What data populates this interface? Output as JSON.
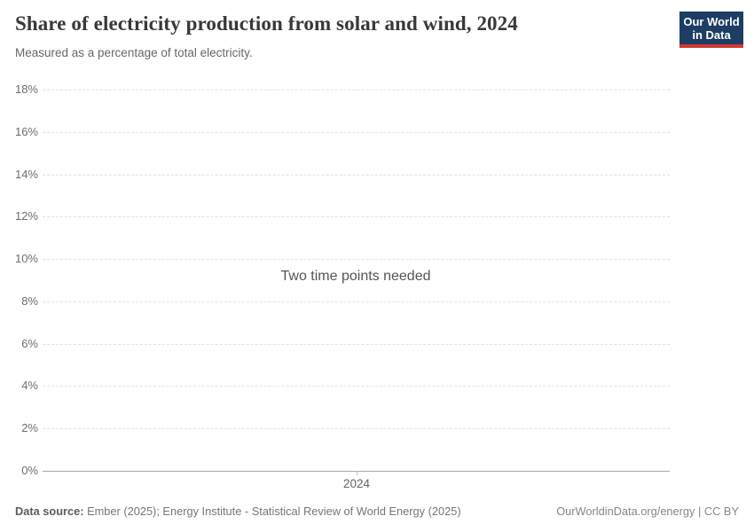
{
  "header": {
    "title": "Share of electricity production from solar and wind, 2024",
    "subtitle": "Measured as a percentage of total electricity.",
    "logo": {
      "line1": "Our World",
      "line2": "in Data",
      "background_color": "#1d3d63",
      "stripe_color": "#d13a34"
    }
  },
  "chart_data": {
    "type": "line",
    "title": "Share of electricity production from solar and wind, 2024",
    "subtitle": "Measured as a percentage of total electricity.",
    "series": [],
    "x_tick_labels": [
      "2024"
    ],
    "y_tick_labels": [
      "0%",
      "2%",
      "4%",
      "6%",
      "8%",
      "10%",
      "12%",
      "14%",
      "16%",
      "18%"
    ],
    "y_tick_values": [
      0,
      2,
      4,
      6,
      8,
      10,
      12,
      14,
      16,
      18
    ],
    "ylim": [
      0,
      18
    ],
    "y_unit": "%",
    "grid": "horizontal-dashed",
    "legend": "none",
    "empty_state_message": "Two time points needed"
  },
  "footer": {
    "datasource_label": "Data source:",
    "datasource_value": " Ember (2025); Energy Institute - Statistical Review of World Energy (2025)",
    "license_text": "OurWorldinData.org/energy | CC BY"
  },
  "colors": {
    "title": "#383838",
    "subtitle": "#676767",
    "axis_label": "#6e6e6e",
    "gridline": "#e3e3e3",
    "zero_line": "#a8a8a8",
    "empty_message": "#545454",
    "logo_background": "#1d3d63",
    "logo_stripe": "#d13a34"
  }
}
